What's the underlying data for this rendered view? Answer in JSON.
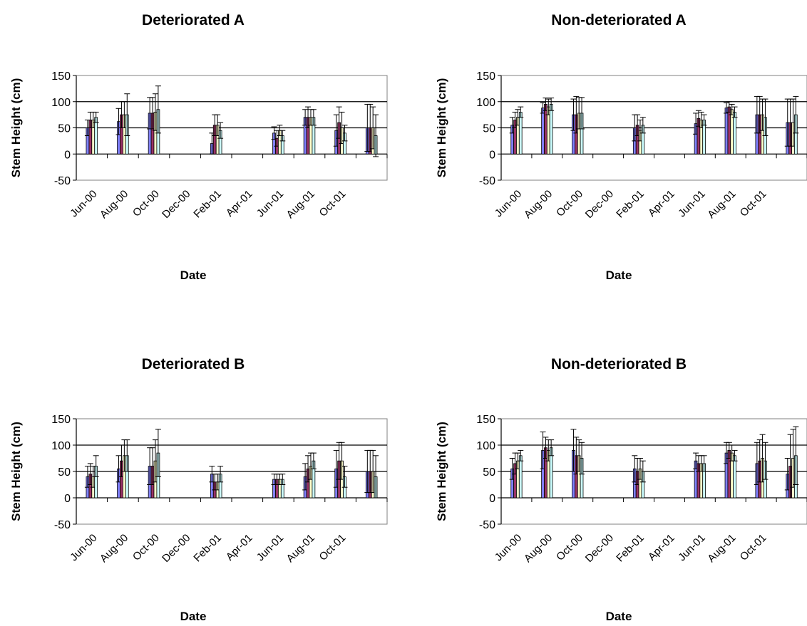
{
  "chart_data": [
    {
      "type": "bar",
      "title": "Deteriorated A",
      "xlabel": "Date",
      "ylabel": "Stem Height (cm)",
      "ylim": [
        -50,
        150
      ],
      "yticks": [
        -50,
        0,
        50,
        100,
        150
      ],
      "x_tick_labels": [
        "Jun-00",
        "Aug-00",
        "Oct-00",
        "Dec-00",
        "Feb-01",
        "Apr-01",
        "Jun-01",
        "Aug-01",
        "Oct-01"
      ],
      "categories": [
        "Jun-00",
        "Aug-00",
        "Oct-00",
        "Feb-01",
        "Apr-01",
        "Jun-01",
        "Aug-01",
        "Oct-01"
      ],
      "series_colors": [
        "#8080ff",
        "#993366",
        "#ffffcc",
        "#ccffff"
      ],
      "series": [
        {
          "values": [
            50,
            62,
            78,
            20,
            40,
            70,
            45,
            50
          ],
          "error": [
            15,
            25,
            30,
            20,
            12,
            15,
            30,
            45
          ]
        },
        {
          "values": [
            65,
            75,
            78,
            55,
            30,
            70,
            60,
            50
          ],
          "error": [
            15,
            25,
            30,
            20,
            15,
            20,
            30,
            45
          ]
        },
        {
          "values": [
            65,
            75,
            80,
            55,
            45,
            70,
            50,
            50
          ],
          "error": [
            15,
            25,
            35,
            20,
            10,
            15,
            30,
            40
          ]
        },
        {
          "values": [
            70,
            75,
            85,
            45,
            35,
            70,
            40,
            35
          ],
          "error": [
            10,
            40,
            45,
            15,
            10,
            15,
            15,
            40
          ]
        }
      ]
    },
    {
      "type": "bar",
      "title": "Non-deteriorated A",
      "xlabel": "Date",
      "ylabel": "Stem Height (cm)",
      "ylim": [
        -50,
        150
      ],
      "yticks": [
        -50,
        0,
        50,
        100,
        150
      ],
      "x_tick_labels": [
        "Jun-00",
        "Aug-00",
        "Oct-00",
        "Dec-00",
        "Feb-01",
        "Apr-01",
        "Jun-01",
        "Aug-01",
        "Oct-01"
      ],
      "categories": [
        "Jun-00",
        "Aug-00",
        "Oct-00",
        "Feb-01",
        "Apr-01",
        "Jun-01",
        "Aug-01",
        "Oct-01"
      ],
      "series_colors": [
        "#8080ff",
        "#993366",
        "#ffffcc",
        "#ccffff"
      ],
      "series": [
        {
          "values": [
            55,
            88,
            75,
            50,
            58,
            88,
            75,
            60
          ],
          "error": [
            15,
            10,
            30,
            25,
            20,
            10,
            35,
            45
          ]
        },
        {
          "values": [
            65,
            95,
            75,
            55,
            68,
            90,
            75,
            60
          ],
          "error": [
            15,
            12,
            35,
            20,
            15,
            10,
            35,
            45
          ]
        },
        {
          "values": [
            70,
            90,
            78,
            45,
            65,
            85,
            75,
            60
          ],
          "error": [
            15,
            15,
            30,
            20,
            15,
            10,
            30,
            45
          ]
        },
        {
          "values": [
            80,
            95,
            78,
            55,
            65,
            80,
            70,
            75
          ],
          "error": [
            10,
            12,
            30,
            15,
            10,
            10,
            35,
            35
          ]
        }
      ]
    },
    {
      "type": "bar",
      "title": "Deteriorated B",
      "xlabel": "Date",
      "ylabel": "Stem Height (cm)",
      "ylim": [
        -50,
        150
      ],
      "yticks": [
        -50,
        0,
        50,
        100,
        150
      ],
      "x_tick_labels": [
        "Jun-00",
        "Aug-00",
        "Oct-00",
        "Dec-00",
        "Feb-01",
        "Apr-01",
        "Jun-01",
        "Aug-01",
        "Oct-01"
      ],
      "categories": [
        "Jun-00",
        "Aug-00",
        "Oct-00",
        "Feb-01",
        "Apr-01",
        "Jun-01",
        "Aug-01",
        "Oct-01"
      ],
      "series_colors": [
        "#8080ff",
        "#993366",
        "#ffffcc",
        "#ccffff"
      ],
      "series": [
        {
          "values": [
            40,
            55,
            60,
            45,
            35,
            40,
            55,
            50
          ],
          "error": [
            20,
            25,
            35,
            15,
            10,
            25,
            35,
            40
          ]
        },
        {
          "values": [
            45,
            70,
            60,
            30,
            35,
            55,
            70,
            50
          ],
          "error": [
            20,
            30,
            35,
            15,
            10,
            25,
            35,
            40
          ]
        },
        {
          "values": [
            40,
            80,
            70,
            30,
            35,
            60,
            70,
            50
          ],
          "error": [
            20,
            30,
            40,
            15,
            10,
            25,
            35,
            40
          ]
        },
        {
          "values": [
            60,
            80,
            85,
            45,
            35,
            70,
            40,
            40
          ],
          "error": [
            20,
            30,
            45,
            15,
            10,
            15,
            20,
            40
          ]
        }
      ]
    },
    {
      "type": "bar",
      "title": "Non-deteriorated B",
      "xlabel": "Date",
      "ylabel": "Stem Height (cm)",
      "ylim": [
        -50,
        150
      ],
      "yticks": [
        -50,
        0,
        50,
        100,
        150
      ],
      "x_tick_labels": [
        "Jun-00",
        "Aug-00",
        "Oct-00",
        "Dec-00",
        "Feb-01",
        "Apr-01",
        "Jun-01",
        "Aug-01",
        "Oct-01"
      ],
      "categories": [
        "Jun-00",
        "Aug-00",
        "Oct-00",
        "Feb-01",
        "Apr-01",
        "Jun-01",
        "Aug-01",
        "Oct-01"
      ],
      "series_colors": [
        "#8080ff",
        "#993366",
        "#ffffcc",
        "#ccffff"
      ],
      "series": [
        {
          "values": [
            55,
            90,
            90,
            55,
            70,
            85,
            65,
            45
          ],
          "error": [
            20,
            35,
            40,
            25,
            15,
            20,
            40,
            30
          ]
        },
        {
          "values": [
            65,
            95,
            80,
            50,
            65,
            90,
            70,
            60
          ],
          "error": [
            20,
            20,
            35,
            25,
            15,
            15,
            40,
            60
          ]
        },
        {
          "values": [
            70,
            90,
            80,
            55,
            65,
            85,
            75,
            75
          ],
          "error": [
            15,
            20,
            30,
            20,
            15,
            15,
            45,
            55
          ]
        },
        {
          "values": [
            80,
            95,
            75,
            50,
            65,
            80,
            70,
            80
          ],
          "error": [
            10,
            15,
            30,
            20,
            15,
            10,
            35,
            55
          ]
        }
      ]
    }
  ]
}
